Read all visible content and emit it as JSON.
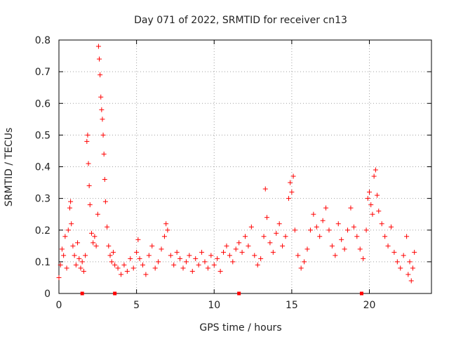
{
  "chart_data": {
    "type": "scatter",
    "title": "Day 071 of 2022, SRMTID for receiver cn13",
    "xlabel": "GPS time / hours",
    "ylabel": "SRMTID / TECUs",
    "xlim": [
      0,
      24
    ],
    "ylim": [
      0,
      0.8
    ],
    "xticks": [
      0,
      5,
      10,
      15,
      20
    ],
    "yticks": [
      0,
      0.1,
      0.2,
      0.3,
      0.4,
      0.5,
      0.6,
      0.7,
      0.8
    ],
    "xtick_labels": [
      "0",
      "5",
      "10",
      "15",
      "20"
    ],
    "ytick_labels": [
      "0",
      "0.1",
      "0.2",
      "0.3",
      "0.4",
      "0.5",
      "0.6",
      "0.7",
      "0.8"
    ],
    "grid": true,
    "marker": "+",
    "series_color": "#ff0000",
    "gap_markers_x": [
      1.5,
      3.6,
      11.6,
      19.5
    ],
    "series": [
      {
        "name": "SRMTID",
        "points": [
          [
            0.0,
            0.05
          ],
          [
            0.1,
            0.09
          ],
          [
            0.2,
            0.14
          ],
          [
            0.3,
            0.12
          ],
          [
            0.4,
            0.18
          ],
          [
            0.5,
            0.08
          ],
          [
            0.6,
            0.2
          ],
          [
            0.7,
            0.27
          ],
          [
            0.75,
            0.29
          ],
          [
            0.8,
            0.22
          ],
          [
            0.9,
            0.15
          ],
          [
            1.0,
            0.12
          ],
          [
            1.1,
            0.09
          ],
          [
            1.2,
            0.16
          ],
          [
            1.3,
            0.11
          ],
          [
            1.4,
            0.08
          ],
          [
            1.5,
            0.1
          ],
          [
            1.6,
            0.07
          ],
          [
            1.7,
            0.12
          ],
          [
            1.8,
            0.48
          ],
          [
            1.85,
            0.5
          ],
          [
            1.9,
            0.41
          ],
          [
            1.95,
            0.34
          ],
          [
            2.0,
            0.28
          ],
          [
            2.1,
            0.19
          ],
          [
            2.2,
            0.16
          ],
          [
            2.3,
            0.18
          ],
          [
            2.4,
            0.15
          ],
          [
            2.5,
            0.25
          ],
          [
            2.55,
            0.78
          ],
          [
            2.6,
            0.74
          ],
          [
            2.65,
            0.69
          ],
          [
            2.7,
            0.62
          ],
          [
            2.75,
            0.58
          ],
          [
            2.8,
            0.55
          ],
          [
            2.85,
            0.5
          ],
          [
            2.9,
            0.44
          ],
          [
            2.95,
            0.36
          ],
          [
            3.0,
            0.29
          ],
          [
            3.1,
            0.21
          ],
          [
            3.2,
            0.15
          ],
          [
            3.3,
            0.12
          ],
          [
            3.4,
            0.1
          ],
          [
            3.5,
            0.13
          ],
          [
            3.6,
            0.09
          ],
          [
            3.8,
            0.08
          ],
          [
            4.0,
            0.06
          ],
          [
            4.2,
            0.09
          ],
          [
            4.4,
            0.07
          ],
          [
            4.6,
            0.11
          ],
          [
            4.8,
            0.08
          ],
          [
            5.0,
            0.13
          ],
          [
            5.1,
            0.17
          ],
          [
            5.2,
            0.11
          ],
          [
            5.4,
            0.09
          ],
          [
            5.6,
            0.06
          ],
          [
            5.8,
            0.12
          ],
          [
            6.0,
            0.15
          ],
          [
            6.2,
            0.08
          ],
          [
            6.4,
            0.1
          ],
          [
            6.6,
            0.14
          ],
          [
            6.8,
            0.18
          ],
          [
            6.9,
            0.22
          ],
          [
            7.0,
            0.2
          ],
          [
            7.2,
            0.12
          ],
          [
            7.4,
            0.09
          ],
          [
            7.6,
            0.13
          ],
          [
            7.8,
            0.11
          ],
          [
            8.0,
            0.08
          ],
          [
            8.2,
            0.1
          ],
          [
            8.4,
            0.12
          ],
          [
            8.6,
            0.07
          ],
          [
            8.8,
            0.11
          ],
          [
            9.0,
            0.09
          ],
          [
            9.2,
            0.13
          ],
          [
            9.4,
            0.1
          ],
          [
            9.6,
            0.08
          ],
          [
            9.8,
            0.12
          ],
          [
            10.0,
            0.09
          ],
          [
            10.2,
            0.11
          ],
          [
            10.4,
            0.07
          ],
          [
            10.6,
            0.13
          ],
          [
            10.8,
            0.15
          ],
          [
            11.0,
            0.12
          ],
          [
            11.2,
            0.1
          ],
          [
            11.4,
            0.14
          ],
          [
            11.6,
            0.16
          ],
          [
            11.8,
            0.13
          ],
          [
            12.0,
            0.18
          ],
          [
            12.2,
            0.15
          ],
          [
            12.4,
            0.21
          ],
          [
            12.6,
            0.12
          ],
          [
            12.8,
            0.09
          ],
          [
            13.0,
            0.11
          ],
          [
            13.2,
            0.18
          ],
          [
            13.3,
            0.33
          ],
          [
            13.4,
            0.24
          ],
          [
            13.6,
            0.16
          ],
          [
            13.8,
            0.13
          ],
          [
            14.0,
            0.19
          ],
          [
            14.2,
            0.22
          ],
          [
            14.4,
            0.15
          ],
          [
            14.6,
            0.18
          ],
          [
            14.8,
            0.3
          ],
          [
            14.9,
            0.35
          ],
          [
            15.0,
            0.32
          ],
          [
            15.1,
            0.37
          ],
          [
            15.2,
            0.2
          ],
          [
            15.4,
            0.12
          ],
          [
            15.6,
            0.08
          ],
          [
            15.8,
            0.1
          ],
          [
            16.0,
            0.14
          ],
          [
            16.2,
            0.2
          ],
          [
            16.4,
            0.25
          ],
          [
            16.6,
            0.21
          ],
          [
            16.8,
            0.18
          ],
          [
            17.0,
            0.23
          ],
          [
            17.2,
            0.27
          ],
          [
            17.4,
            0.2
          ],
          [
            17.6,
            0.15
          ],
          [
            17.8,
            0.12
          ],
          [
            18.0,
            0.22
          ],
          [
            18.2,
            0.17
          ],
          [
            18.4,
            0.14
          ],
          [
            18.6,
            0.2
          ],
          [
            18.8,
            0.27
          ],
          [
            19.0,
            0.21
          ],
          [
            19.2,
            0.18
          ],
          [
            19.4,
            0.14
          ],
          [
            19.6,
            0.11
          ],
          [
            19.8,
            0.2
          ],
          [
            19.9,
            0.3
          ],
          [
            20.0,
            0.32
          ],
          [
            20.1,
            0.28
          ],
          [
            20.2,
            0.25
          ],
          [
            20.3,
            0.37
          ],
          [
            20.4,
            0.39
          ],
          [
            20.5,
            0.31
          ],
          [
            20.6,
            0.26
          ],
          [
            20.8,
            0.22
          ],
          [
            21.0,
            0.18
          ],
          [
            21.2,
            0.15
          ],
          [
            21.4,
            0.21
          ],
          [
            21.6,
            0.13
          ],
          [
            21.8,
            0.1
          ],
          [
            22.0,
            0.08
          ],
          [
            22.2,
            0.12
          ],
          [
            22.4,
            0.18
          ],
          [
            22.5,
            0.06
          ],
          [
            22.6,
            0.1
          ],
          [
            22.7,
            0.04
          ],
          [
            22.8,
            0.08
          ],
          [
            22.9,
            0.13
          ]
        ]
      }
    ]
  }
}
